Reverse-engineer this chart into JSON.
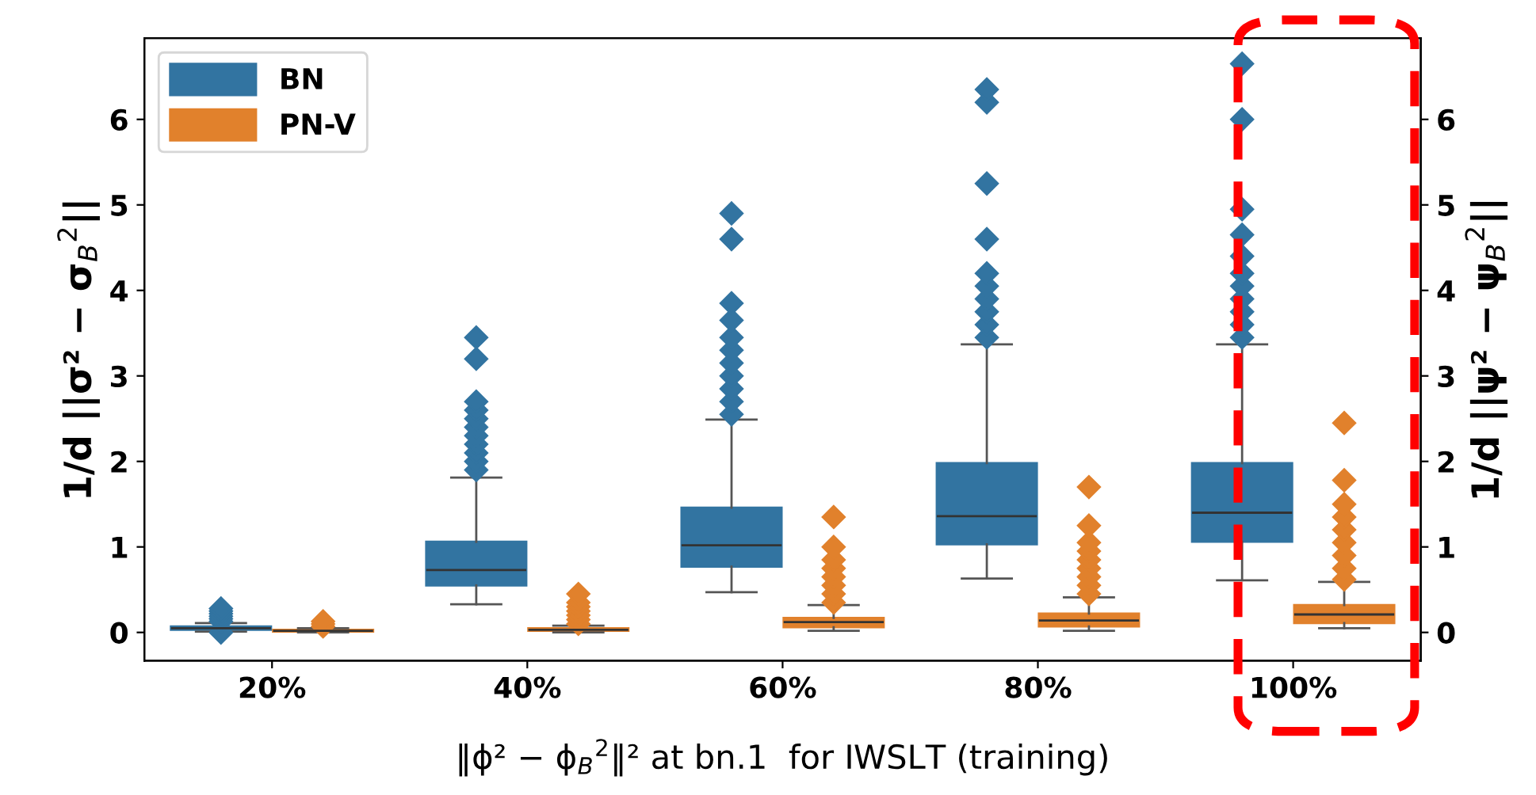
{
  "chart_data": {
    "type": "box",
    "xlabel": "‖ϕ² − ϕ$_{B}$$^{2}$‖² at bn.1  for IWSLT (training)",
    "ylabel": "1/d ||σ² − σ$_{B}$$^{2}$||",
    "y2label": "1/d ||ψ² − ψ$_{B}$$^{2}$||",
    "categories": [
      "20%",
      "40%",
      "60%",
      "80%",
      "100%"
    ],
    "ylim": [
      -0.33,
      6.95
    ],
    "yticks": [
      0,
      1,
      2,
      3,
      4,
      5,
      6
    ],
    "y2lim": [
      -0.33,
      6.95
    ],
    "y2ticks": [
      0,
      1,
      2,
      3,
      4,
      5,
      6
    ],
    "grid": false,
    "legend": "top left",
    "marker": "diamond",
    "series": [
      {
        "name": "BN",
        "color": "#3274a1",
        "boxes": [
          {
            "low": 0.01,
            "q1": 0.03,
            "median": 0.05,
            "q3": 0.07,
            "high": 0.11,
            "outliers": [
              0.0,
              0.13,
              0.16,
              0.19,
              0.22,
              0.25,
              0.28
            ]
          },
          {
            "low": 0.33,
            "q1": 0.55,
            "median": 0.73,
            "q3": 1.06,
            "high": 1.81,
            "outliers": [
              1.9,
              2.0,
              2.1,
              2.2,
              2.3,
              2.4,
              2.5,
              2.6,
              2.7,
              3.2,
              3.45
            ]
          },
          {
            "low": 0.47,
            "q1": 0.77,
            "median": 1.02,
            "q3": 1.46,
            "high": 2.49,
            "outliers": [
              2.55,
              2.7,
              2.85,
              3.0,
              3.15,
              3.3,
              3.45,
              3.65,
              3.85,
              4.6,
              4.9
            ]
          },
          {
            "low": 0.63,
            "q1": 1.03,
            "median": 1.36,
            "q3": 1.98,
            "high": 3.37,
            "outliers": [
              3.45,
              3.6,
              3.75,
              3.9,
              4.05,
              4.2,
              4.6,
              5.25,
              6.2,
              6.35
            ]
          },
          {
            "low": 0.61,
            "q1": 1.06,
            "median": 1.4,
            "q3": 1.98,
            "high": 3.37,
            "outliers": [
              3.45,
              3.6,
              3.75,
              3.9,
              4.05,
              4.2,
              4.4,
              4.65,
              4.95,
              6.0,
              6.65
            ]
          }
        ]
      },
      {
        "name": "PN-V",
        "color": "#e1812c",
        "boxes": [
          {
            "low": 0.0,
            "q1": 0.01,
            "median": 0.02,
            "q3": 0.03,
            "high": 0.05,
            "outliers": [
              0.07,
              0.1,
              0.13
            ]
          },
          {
            "low": 0.0,
            "q1": 0.02,
            "median": 0.03,
            "q3": 0.05,
            "high": 0.08,
            "outliers": [
              0.1,
              0.15,
              0.2,
              0.25,
              0.3,
              0.35,
              0.45
            ]
          },
          {
            "low": 0.02,
            "q1": 0.06,
            "median": 0.12,
            "q3": 0.17,
            "high": 0.32,
            "outliers": [
              0.35,
              0.45,
              0.55,
              0.65,
              0.75,
              0.85,
              1.0,
              1.35
            ]
          },
          {
            "low": 0.02,
            "q1": 0.07,
            "median": 0.14,
            "q3": 0.22,
            "high": 0.41,
            "outliers": [
              0.45,
              0.55,
              0.65,
              0.75,
              0.85,
              0.95,
              1.05,
              1.25,
              1.7
            ]
          },
          {
            "low": 0.05,
            "q1": 0.11,
            "median": 0.21,
            "q3": 0.32,
            "high": 0.59,
            "outliers": [
              0.62,
              0.75,
              0.9,
              1.05,
              1.2,
              1.35,
              1.5,
              1.78,
              2.45
            ]
          }
        ]
      }
    ]
  }
}
